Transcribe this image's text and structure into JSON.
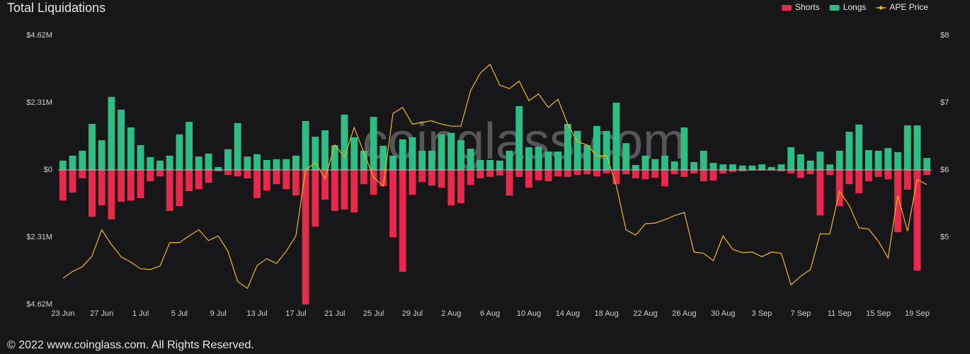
{
  "chart_data": {
    "type": "bar-line",
    "title": "Total Liquidations",
    "watermark": "coinglass.com",
    "footer": "© 2022 www.coinglass.com. All Rights Reserved.",
    "categories": [
      "23 Jun",
      null,
      null,
      null,
      "27 Jun",
      null,
      null,
      null,
      "1 Jul",
      null,
      null,
      null,
      "5 Jul",
      null,
      null,
      null,
      "9 Jul",
      null,
      null,
      null,
      "13 Jul",
      null,
      null,
      null,
      "17 Jul",
      null,
      null,
      null,
      "21 Jul",
      null,
      null,
      null,
      "25 Jul",
      null,
      null,
      null,
      "29 Jul",
      null,
      null,
      null,
      "2 Aug",
      null,
      null,
      null,
      "6 Aug",
      null,
      null,
      null,
      "10 Aug",
      null,
      null,
      null,
      "14 Aug",
      null,
      null,
      null,
      "18 Aug",
      null,
      null,
      null,
      "22 Aug",
      null,
      null,
      null,
      "26 Aug",
      null,
      null,
      null,
      "30 Aug",
      null,
      null,
      null,
      "3 Sep",
      null,
      null,
      null,
      "7 Sep",
      null,
      null,
      null,
      "11 Sep",
      null,
      null,
      null,
      "15 Sep",
      null,
      null,
      null,
      "19 Sep",
      null
    ],
    "series": [
      {
        "name": "Shorts",
        "color": "#e8294c",
        "kind": "bar",
        "values": [
          -1050000,
          -780000,
          -290000,
          -1610000,
          -1220000,
          -1700000,
          -1090000,
          -1050000,
          -970000,
          -390000,
          -220000,
          -1410000,
          -1240000,
          -730000,
          -660000,
          -440000,
          -50000,
          -170000,
          -220000,
          -290000,
          -970000,
          -710000,
          -490000,
          -660000,
          -880000,
          -4620000,
          -1950000,
          -1020000,
          -1410000,
          -1360000,
          -1460000,
          -490000,
          -850000,
          -560000,
          -2310000,
          -3500000,
          -850000,
          -410000,
          -540000,
          -610000,
          -1220000,
          -1140000,
          -510000,
          -290000,
          -240000,
          -190000,
          -880000,
          -240000,
          -610000,
          -360000,
          -390000,
          -220000,
          -240000,
          -170000,
          -150000,
          -220000,
          -120000,
          -490000,
          -150000,
          -290000,
          -320000,
          -270000,
          -560000,
          -150000,
          -240000,
          -120000,
          -390000,
          -360000,
          -120000,
          -70000,
          -50000,
          -20000,
          -20000,
          -20000,
          -50000,
          -120000,
          -270000,
          -150000,
          -1560000,
          -170000,
          -1240000,
          -490000,
          -800000,
          -390000,
          -240000,
          -320000,
          -2140000,
          -680000,
          -3460000,
          -170000
        ]
      },
      {
        "name": "Longs",
        "color": "#2dbd85",
        "kind": "bar",
        "values": [
          320000,
          490000,
          660000,
          1580000,
          1020000,
          2510000,
          2070000,
          1460000,
          850000,
          440000,
          320000,
          490000,
          1220000,
          1650000,
          460000,
          560000,
          100000,
          710000,
          1610000,
          460000,
          540000,
          340000,
          370000,
          370000,
          490000,
          1680000,
          1140000,
          1360000,
          850000,
          1900000,
          1120000,
          660000,
          1820000,
          830000,
          490000,
          1050000,
          1120000,
          660000,
          660000,
          1220000,
          1270000,
          1020000,
          730000,
          340000,
          340000,
          320000,
          660000,
          2190000,
          780000,
          800000,
          630000,
          630000,
          1580000,
          1340000,
          850000,
          1510000,
          1340000,
          2310000,
          920000,
          170000,
          490000,
          370000,
          490000,
          290000,
          1460000,
          270000,
          660000,
          240000,
          190000,
          190000,
          150000,
          150000,
          190000,
          100000,
          190000,
          780000,
          540000,
          320000,
          630000,
          190000,
          660000,
          1310000,
          1560000,
          680000,
          660000,
          750000,
          610000,
          1530000,
          1530000,
          410000
        ]
      },
      {
        "name": "APE Price",
        "color": "#f0b90b",
        "kind": "line",
        "axis": "y2",
        "values": [
          4.39,
          4.49,
          4.56,
          4.72,
          5.11,
          4.89,
          4.71,
          4.63,
          4.53,
          4.52,
          4.57,
          4.92,
          4.92,
          5.02,
          5.11,
          4.95,
          5.02,
          4.79,
          4.34,
          4.24,
          4.58,
          4.68,
          4.61,
          4.79,
          5.02,
          6.0,
          6.11,
          5.87,
          6.37,
          6.19,
          6.63,
          6.26,
          5.89,
          5.76,
          6.84,
          6.93,
          6.68,
          6.71,
          6.73,
          6.68,
          6.65,
          6.65,
          7.18,
          7.44,
          7.57,
          7.26,
          7.21,
          7.32,
          7.03,
          7.13,
          6.93,
          7.05,
          6.68,
          6.42,
          6.37,
          6.21,
          6.21,
          5.77,
          5.11,
          5.03,
          5.2,
          5.21,
          5.26,
          5.32,
          5.37,
          4.78,
          4.76,
          4.65,
          5.02,
          4.82,
          4.77,
          4.78,
          4.71,
          4.78,
          4.76,
          4.29,
          4.42,
          4.52,
          5.05,
          5.05,
          5.68,
          5.47,
          5.14,
          5.12,
          4.94,
          4.69,
          5.62,
          5.09,
          5.86,
          5.78
        ]
      }
    ],
    "ylim": [
      -4620000,
      4620000
    ],
    "yticks": [
      {
        "value": 4620000,
        "label": "$4.62M"
      },
      {
        "value": 2310000,
        "label": "$2.31M"
      },
      {
        "value": 0,
        "label": "$0"
      },
      {
        "value": -2310000,
        "label": "$2.31M"
      },
      {
        "value": -4620000,
        "label": "$4.62M"
      }
    ],
    "y2lim": [
      4,
      8
    ],
    "y2ticks": [
      {
        "value": 5,
        "label": "$5"
      },
      {
        "value": 6,
        "label": "$6"
      },
      {
        "value": 7,
        "label": "$7"
      },
      {
        "value": 8,
        "label": "$8"
      }
    ],
    "stacked": false,
    "grid": false,
    "legend": "top-right"
  }
}
